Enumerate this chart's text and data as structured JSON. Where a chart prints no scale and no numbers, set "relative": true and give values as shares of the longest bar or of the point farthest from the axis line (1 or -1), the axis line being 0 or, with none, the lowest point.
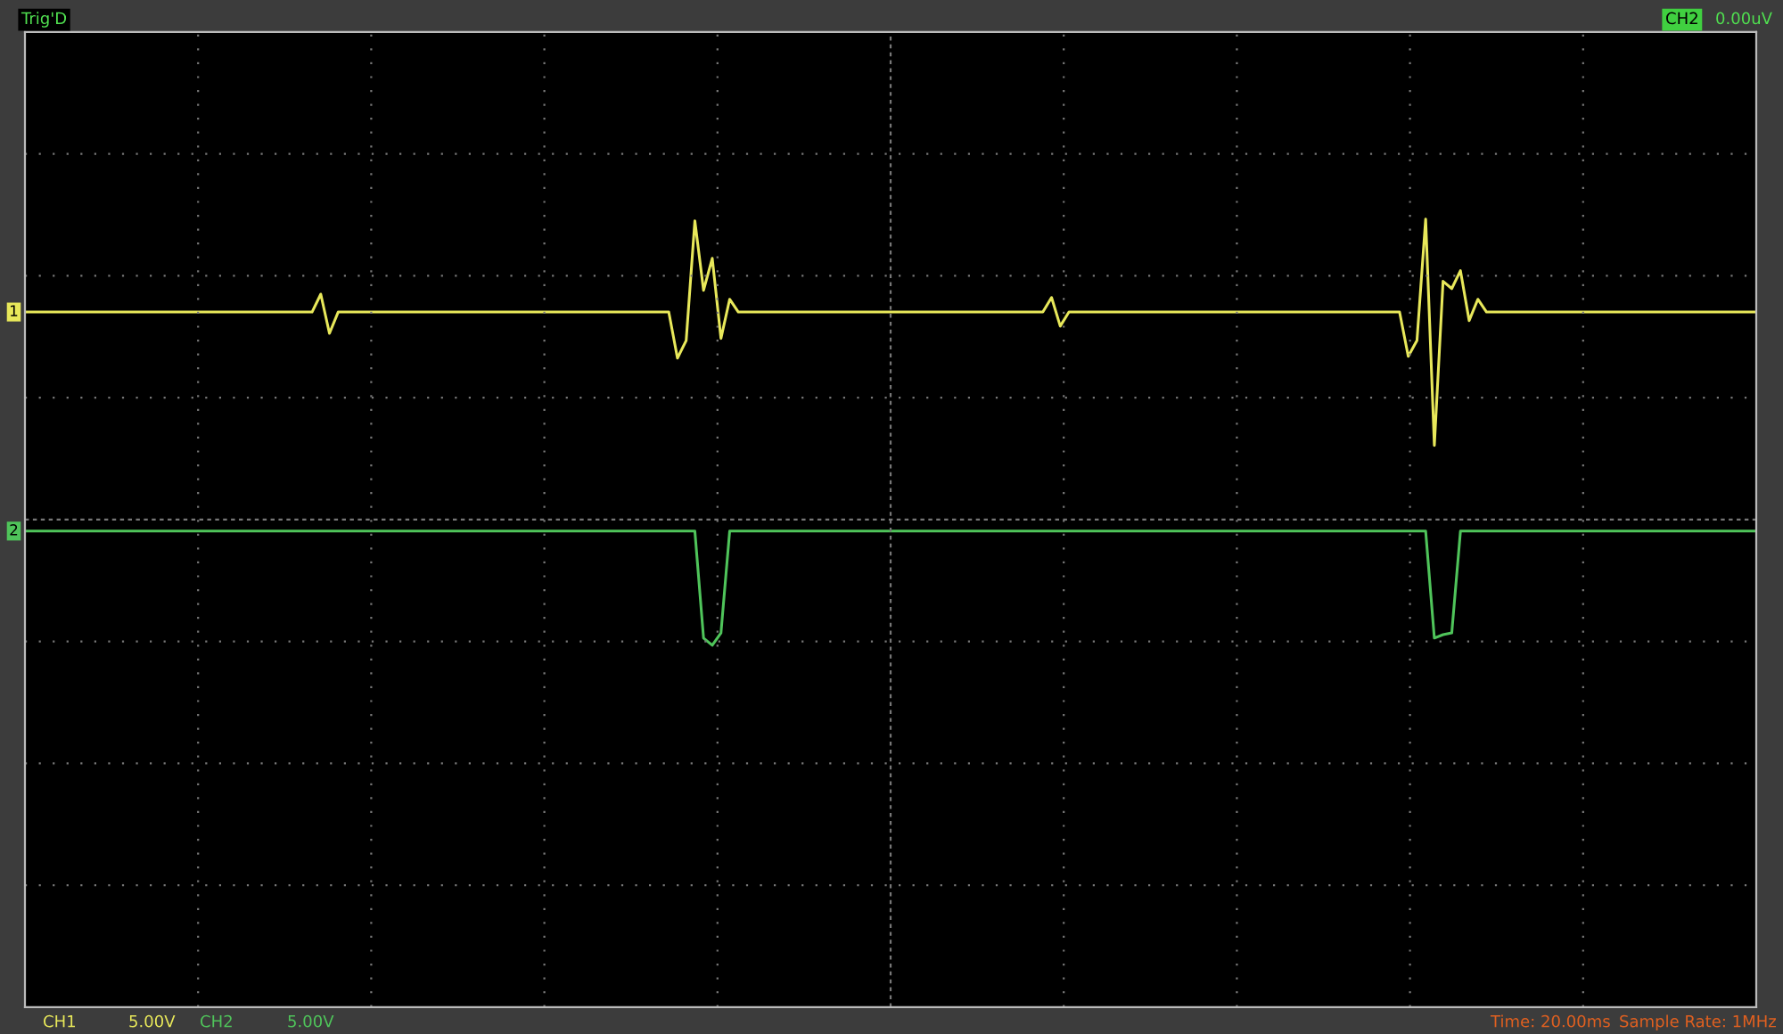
{
  "chart_data": {
    "type": "line",
    "relative": true,
    "grid": true,
    "legend": false,
    "line_style": "solid",
    "categories": [
      null,
      null,
      null,
      null,
      null,
      null,
      null,
      null,
      null,
      null,
      null,
      null,
      null,
      null,
      null,
      null,
      null,
      null,
      null,
      null,
      null,
      null,
      null,
      null,
      null,
      null,
      null,
      null,
      null,
      null,
      null,
      null,
      null,
      null,
      null,
      null,
      null,
      null,
      null,
      null,
      null,
      null,
      null,
      null,
      null,
      null,
      null,
      null,
      null,
      null,
      null,
      null,
      null,
      null,
      null,
      null,
      null,
      null,
      null,
      null,
      null,
      null,
      null,
      null,
      null,
      null,
      null,
      null,
      null,
      null,
      null,
      null,
      null,
      null,
      null,
      null,
      null,
      null,
      null,
      null,
      null,
      null,
      null,
      null,
      null,
      null,
      null,
      null,
      null,
      null,
      null,
      null,
      null,
      null,
      null,
      null,
      null,
      null,
      null,
      null,
      null,
      null,
      null,
      null,
      null,
      null,
      null,
      null,
      null,
      null,
      null,
      null,
      null,
      null,
      null,
      null,
      null,
      null,
      null,
      null,
      null,
      null,
      null,
      null,
      null,
      null,
      null,
      null,
      null,
      null,
      null,
      null,
      null,
      null,
      null,
      null,
      null,
      null,
      null,
      null,
      null,
      null,
      null,
      null,
      null,
      null,
      null,
      null,
      null,
      null,
      null,
      null,
      null,
      null,
      null,
      null,
      null,
      null,
      null,
      null,
      null,
      null,
      null,
      null,
      null,
      null,
      null,
      null,
      null,
      null,
      null,
      null,
      null,
      null,
      null,
      null,
      null,
      null,
      null,
      null,
      null,
      null,
      null,
      null,
      null,
      null,
      null,
      null,
      null,
      null,
      null,
      null,
      null,
      null,
      null,
      null,
      null,
      null,
      null,
      null
    ],
    "annotations": [
      "Trig'D",
      "CH2",
      "0.00uV",
      "CH1",
      "5.00V",
      "CH2",
      "5.00V",
      "Time: 20.00ms",
      "Sample Rate: 1MHz"
    ],
    "series": [
      {
        "name": "1",
        "color": "#e8e85a",
        "values": [
          0.782,
          0.782,
          0.782,
          0.782,
          0.782,
          0.782,
          0.782,
          0.782,
          0.782,
          0.782,
          0.782,
          0.782,
          0.782,
          0.782,
          0.782,
          0.782,
          0.782,
          0.782,
          0.782,
          0.782,
          0.782,
          0.782,
          0.782,
          0.782,
          0.782,
          0.782,
          0.782,
          0.782,
          0.782,
          0.782,
          0.782,
          0.782,
          0.782,
          0.782,
          0.824,
          0.732,
          0.782,
          0.782,
          0.782,
          0.782,
          0.782,
          0.782,
          0.782,
          0.782,
          0.782,
          0.782,
          0.782,
          0.782,
          0.782,
          0.782,
          0.782,
          0.782,
          0.782,
          0.782,
          0.782,
          0.782,
          0.782,
          0.782,
          0.782,
          0.782,
          0.782,
          0.782,
          0.782,
          0.782,
          0.782,
          0.782,
          0.782,
          0.782,
          0.782,
          0.782,
          0.782,
          0.782,
          0.782,
          0.782,
          0.782,
          0.674,
          0.715,
          0.996,
          0.833,
          0.908,
          0.72,
          0.812,
          0.782,
          0.782,
          0.782,
          0.782,
          0.782,
          0.782,
          0.782,
          0.782,
          0.782,
          0.782,
          0.782,
          0.782,
          0.782,
          0.782,
          0.782,
          0.782,
          0.782,
          0.782,
          0.782,
          0.782,
          0.782,
          0.782,
          0.782,
          0.782,
          0.782,
          0.782,
          0.782,
          0.782,
          0.782,
          0.782,
          0.782,
          0.782,
          0.782,
          0.782,
          0.782,
          0.782,
          0.816,
          0.749,
          0.782,
          0.782,
          0.782,
          0.782,
          0.782,
          0.782,
          0.782,
          0.782,
          0.782,
          0.782,
          0.782,
          0.782,
          0.782,
          0.782,
          0.782,
          0.782,
          0.782,
          0.782,
          0.782,
          0.782,
          0.782,
          0.782,
          0.782,
          0.782,
          0.782,
          0.782,
          0.782,
          0.782,
          0.782,
          0.782,
          0.782,
          0.782,
          0.782,
          0.782,
          0.782,
          0.782,
          0.782,
          0.782,
          0.782,
          0.678,
          0.715,
          1,
          0.469,
          0.854,
          0.837,
          0.879,
          0.762,
          0.812,
          0.782,
          0.782,
          0.782,
          0.782,
          0.782,
          0.782,
          0.782,
          0.782,
          0.782,
          0.782,
          0.782,
          0.782,
          0.782,
          0.782,
          0.782,
          0.782,
          0.782,
          0.782,
          0.782,
          0.782,
          0.782,
          0.782,
          0.782,
          0.782,
          0.782,
          0.782,
          0.782,
          0.782,
          0.782,
          0.782,
          0.782,
          0.782
        ]
      },
      {
        "name": "2",
        "color": "#4fc45a",
        "values": [
          0.268,
          0.268,
          0.268,
          0.268,
          0.268,
          0.268,
          0.268,
          0.268,
          0.268,
          0.268,
          0.268,
          0.268,
          0.268,
          0.268,
          0.268,
          0.268,
          0.268,
          0.268,
          0.268,
          0.268,
          0.268,
          0.268,
          0.268,
          0.268,
          0.268,
          0.268,
          0.268,
          0.268,
          0.268,
          0.268,
          0.268,
          0.268,
          0.268,
          0.268,
          0.268,
          0.268,
          0.268,
          0.268,
          0.268,
          0.268,
          0.268,
          0.268,
          0.268,
          0.268,
          0.268,
          0.268,
          0.268,
          0.268,
          0.268,
          0.268,
          0.268,
          0.268,
          0.268,
          0.268,
          0.268,
          0.268,
          0.268,
          0.268,
          0.268,
          0.268,
          0.268,
          0.268,
          0.268,
          0.268,
          0.268,
          0.268,
          0.268,
          0.268,
          0.268,
          0.268,
          0.268,
          0.268,
          0.268,
          0.268,
          0.268,
          0.268,
          0.268,
          0.268,
          0.017,
          0,
          0.029,
          0.268,
          0.268,
          0.268,
          0.268,
          0.268,
          0.268,
          0.268,
          0.268,
          0.268,
          0.268,
          0.268,
          0.268,
          0.268,
          0.268,
          0.268,
          0.268,
          0.268,
          0.268,
          0.268,
          0.268,
          0.268,
          0.268,
          0.268,
          0.268,
          0.268,
          0.268,
          0.268,
          0.268,
          0.268,
          0.268,
          0.268,
          0.268,
          0.268,
          0.268,
          0.268,
          0.268,
          0.268,
          0.268,
          0.268,
          0.268,
          0.268,
          0.268,
          0.268,
          0.268,
          0.268,
          0.268,
          0.268,
          0.268,
          0.268,
          0.268,
          0.268,
          0.268,
          0.268,
          0.268,
          0.268,
          0.268,
          0.268,
          0.268,
          0.268,
          0.268,
          0.268,
          0.268,
          0.268,
          0.268,
          0.268,
          0.268,
          0.268,
          0.268,
          0.268,
          0.268,
          0.268,
          0.268,
          0.268,
          0.268,
          0.268,
          0.268,
          0.268,
          0.268,
          0.268,
          0.268,
          0.268,
          0.017,
          0.025,
          0.029,
          0.268,
          0.268,
          0.268,
          0.268,
          0.268,
          0.268,
          0.268,
          0.268,
          0.268,
          0.268,
          0.268,
          0.268,
          0.268,
          0.268,
          0.268,
          0.268,
          0.268,
          0.268,
          0.268,
          0.268,
          0.268,
          0.268,
          0.268,
          0.268,
          0.268,
          0.268,
          0.268,
          0.268,
          0.268,
          0.268,
          0.268,
          0.268,
          0.268,
          0.268,
          0.268
        ]
      }
    ]
  }
}
